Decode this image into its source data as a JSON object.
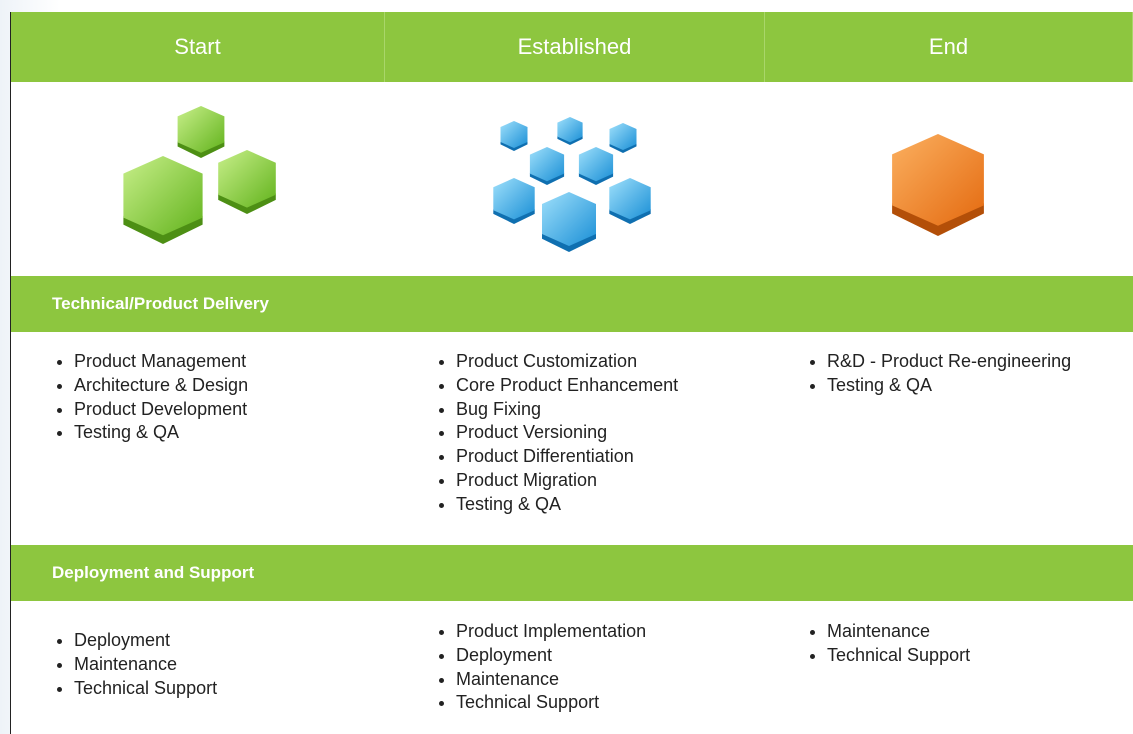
{
  "columns": [
    "Start",
    "Established",
    "End"
  ],
  "sections": [
    {
      "title": "Technical/Product Delivery",
      "lists": [
        [
          "Product Management",
          "Architecture & Design",
          "Product Development",
          "Testing & QA"
        ],
        [
          "Product Customization",
          "Core Product Enhancement",
          "Bug Fixing",
          "Product Versioning",
          "Product Differentiation",
          "Product Migration",
          "Testing & QA"
        ],
        [
          "R&D - Product Re-engineering",
          "Testing & QA"
        ]
      ]
    },
    {
      "title": "Deployment and Support",
      "lists": [
        [
          "Deployment",
          "Maintenance",
          "Technical Support"
        ],
        [
          "Product Implementation",
          "Deployment",
          "Maintenance",
          "Technical Support"
        ],
        [
          "Maintenance",
          "Technical Support"
        ]
      ]
    }
  ]
}
